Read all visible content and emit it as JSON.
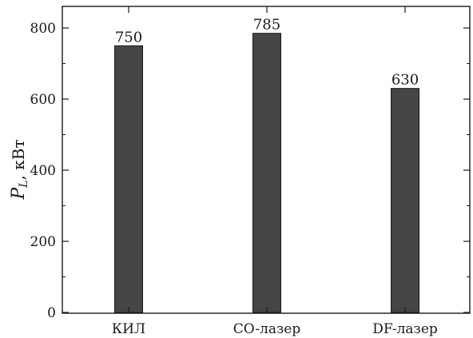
{
  "chart_data": {
    "type": "bar",
    "categories": [
      "КИЛ",
      "CO-лазер",
      "DF-лазер"
    ],
    "values": [
      750,
      785,
      630
    ],
    "data_labels": [
      "750",
      "785",
      "630"
    ],
    "title": "",
    "xlabel": "",
    "ylabel": {
      "symbol": "P",
      "subscript": "L",
      "unit": ", кВт"
    },
    "ylim": [
      0,
      800
    ],
    "yticks": [
      0,
      200,
      400,
      600,
      800
    ],
    "ytick_labels": [
      "0",
      "200",
      "400",
      "600",
      "800"
    ],
    "grid": false,
    "legend": "none",
    "colors": {
      "bar_fill": "#454545",
      "bar_stroke": "#1a1a1a",
      "axis": "#1a1a1a"
    }
  }
}
